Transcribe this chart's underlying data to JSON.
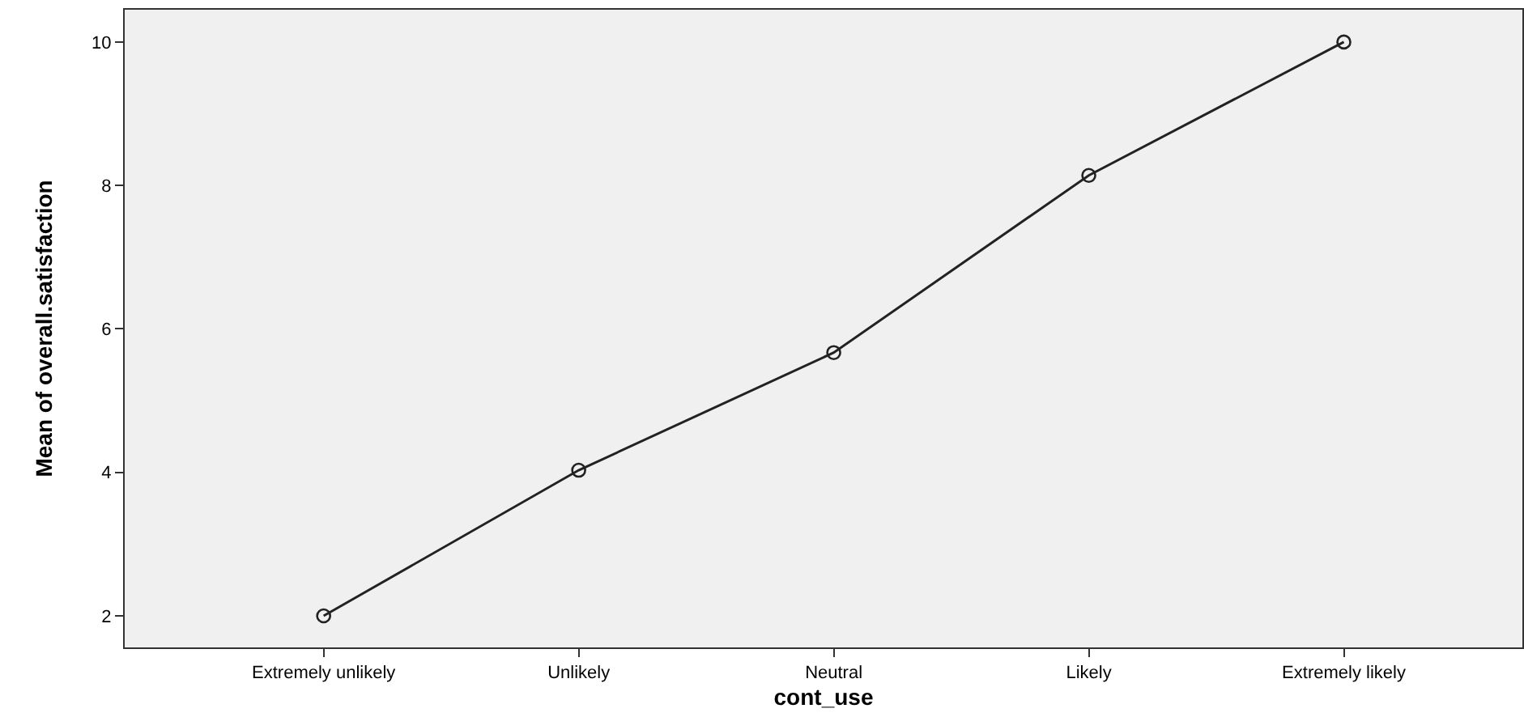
{
  "chart_data": {
    "type": "line",
    "xlabel": "cont_use",
    "ylabel": "Mean of overall.satisfaction",
    "categories": [
      "Extremely unlikely",
      "Unlikely",
      "Neutral",
      "Likely",
      "Extremely likely"
    ],
    "series": [
      {
        "color": "#222222",
        "values": [
          2.0,
          4.03,
          5.67,
          8.14,
          10.0
        ]
      }
    ],
    "ylim": [
      1.56,
      10.45
    ],
    "yticks": [
      2,
      4,
      6,
      8,
      10
    ],
    "grid": false,
    "legend": false,
    "marker": "circle",
    "line_style": "solid"
  }
}
